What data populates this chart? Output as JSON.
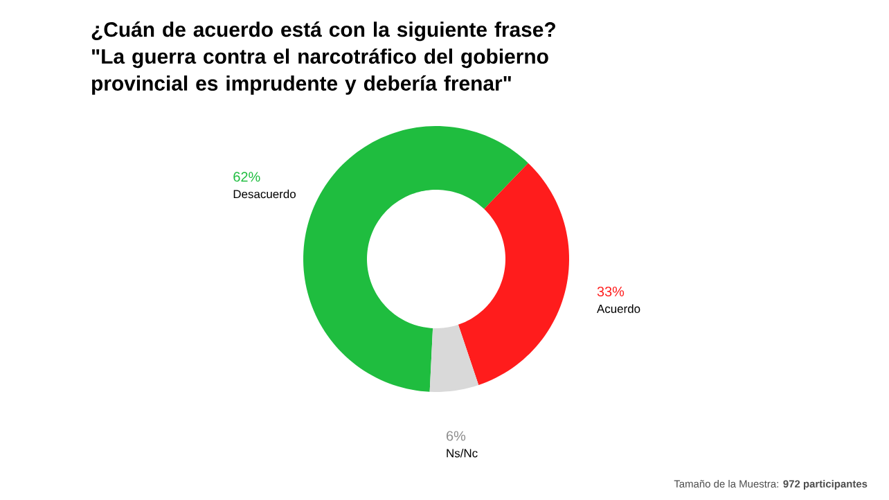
{
  "chart_data": {
    "type": "donut",
    "title": "¿Cuán de acuerdo está con la siguiente frase?",
    "subtitle": "\"La guerra contra el narcotráfico del gobierno provincial es imprudente y debería frenar\"",
    "categories": [
      "Desacuerdo",
      "Acuerdo",
      "Ns/Nc"
    ],
    "values": [
      62,
      33,
      6
    ],
    "value_labels": [
      "62%",
      "33%",
      "6%"
    ],
    "colors": [
      "#1fbd3f",
      "#ff1c1c",
      "#d9d9d9"
    ],
    "annotations": [
      "Tamaño de la Muestra: **972 participantes**"
    ]
  }
}
